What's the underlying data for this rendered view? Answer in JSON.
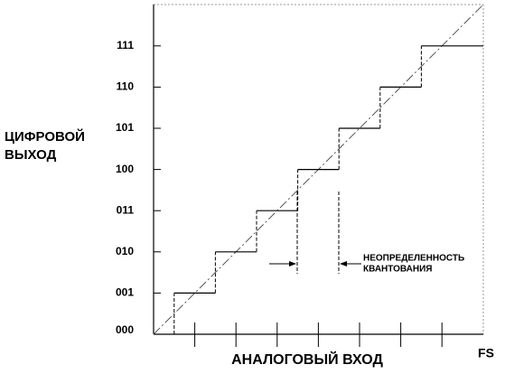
{
  "y_axis": {
    "label_lines": [
      "ЦИФРОВОЙ",
      "ВЫХОД"
    ],
    "codes": [
      "000",
      "001",
      "010",
      "011",
      "100",
      "101",
      "110",
      "111"
    ]
  },
  "x_axis": {
    "label": "АНАЛОГОВЫЙ ВХОД",
    "end_label": "FS"
  },
  "annotation": {
    "lines": [
      "НЕОПРЕДЕЛЕННОСТЬ",
      "КВАНТОВАНИЯ"
    ]
  }
}
